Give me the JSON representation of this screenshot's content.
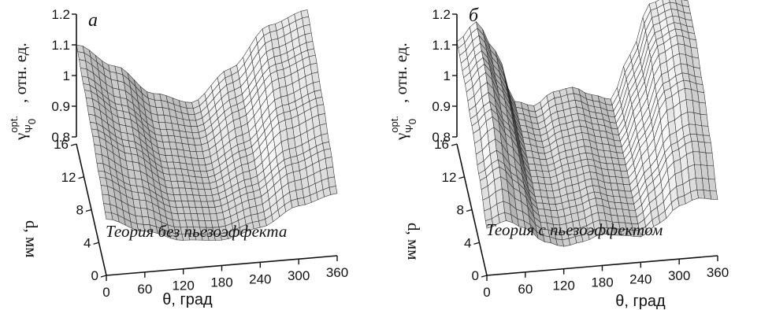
{
  "chart_data": [
    {
      "type": "surface3d",
      "panel": "а",
      "annotation": "Теория без пьезоэффекта",
      "xlabel": "θ, град",
      "ylabel": "d, мм",
      "zlabel": {
        "base": "γ",
        "sup": "opt.",
        "sub": "Ψ",
        "subsub": "0",
        "unit": ", отн. ед."
      },
      "xticks": [
        "0",
        "60",
        "120",
        "180",
        "240",
        "300",
        "360"
      ],
      "yticks": [
        "0",
        "4",
        "8",
        "12",
        "16"
      ],
      "zticks": [
        "0.8",
        "0.9",
        "1",
        "1.1",
        "1.2"
      ],
      "xlim": [
        0,
        360
      ],
      "ylim": [
        0,
        16
      ],
      "zlim": [
        0.8,
        1.2
      ],
      "theta": [
        0,
        60,
        120,
        180,
        240,
        300,
        360
      ],
      "d": [
        0,
        4,
        8,
        12,
        16
      ],
      "z": [
        [
          0.96,
          0.91,
          0.87,
          0.86,
          0.89,
          0.95,
          0.98
        ],
        [
          1.0,
          0.94,
          0.88,
          0.87,
          0.91,
          0.99,
          1.03
        ],
        [
          1.04,
          0.97,
          0.89,
          0.87,
          0.93,
          1.04,
          1.08
        ],
        [
          1.07,
          0.99,
          0.9,
          0.88,
          0.96,
          1.08,
          1.12
        ],
        [
          1.1,
          1.02,
          0.92,
          0.88,
          0.98,
          1.11,
          1.15
        ]
      ],
      "colors": {
        "surface_light": "#f2f2f2",
        "surface_dark": "#3a3a3a",
        "grid": "#2a2a2a"
      }
    },
    {
      "type": "surface3d",
      "panel": "б",
      "annotation": "Теория с пьезоэффектом",
      "xlabel": "θ, град",
      "ylabel": "d, мм",
      "zlabel": {
        "base": "γ",
        "sup": "opt.",
        "sub": "Ψ",
        "subsub": "0",
        "unit": ", отн. ед."
      },
      "xticks": [
        "0",
        "60",
        "120",
        "180",
        "240",
        "300",
        "360"
      ],
      "yticks": [
        "0",
        "4",
        "8",
        "12",
        "16"
      ],
      "zticks": [
        "0.8",
        "0.9",
        "1",
        "1.1",
        "1.2"
      ],
      "xlim": [
        0,
        360
      ],
      "ylim": [
        0,
        16
      ],
      "zlim": [
        0.8,
        1.2
      ],
      "theta": [
        0,
        30,
        60,
        90,
        120,
        150,
        180,
        210,
        240,
        270,
        300,
        330,
        360
      ],
      "d": [
        0,
        4,
        8,
        12,
        16
      ],
      "z": [
        [
          0.93,
          0.95,
          0.92,
          0.87,
          0.85,
          0.86,
          0.88,
          0.87,
          0.86,
          0.9,
          0.95,
          0.97,
          0.96
        ],
        [
          0.99,
          1.03,
          0.97,
          0.88,
          0.87,
          0.88,
          0.9,
          0.88,
          0.87,
          0.94,
          1.03,
          1.06,
          1.05
        ],
        [
          1.05,
          1.1,
          1.02,
          0.89,
          0.88,
          0.9,
          0.91,
          0.89,
          0.88,
          0.98,
          1.11,
          1.14,
          1.12
        ],
        [
          1.09,
          1.15,
          1.05,
          0.9,
          0.88,
          0.91,
          0.92,
          0.9,
          0.88,
          1.01,
          1.16,
          1.19,
          1.17
        ],
        [
          1.11,
          1.17,
          1.07,
          0.9,
          0.88,
          0.92,
          0.93,
          0.9,
          0.88,
          1.02,
          1.18,
          1.2,
          1.18
        ]
      ],
      "colors": {
        "surface_light": "#f2f2f2",
        "surface_dark": "#3a3a3a",
        "grid": "#2a2a2a"
      }
    }
  ]
}
